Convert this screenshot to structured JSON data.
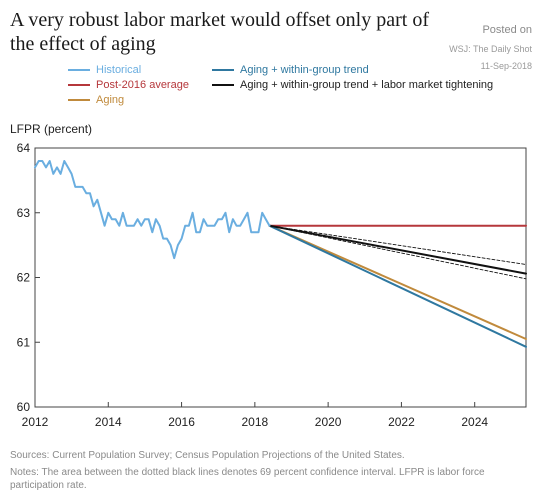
{
  "header": {
    "title": "A very robust labor market would offset only part of the effect of aging",
    "posted_on": "Posted on",
    "source": "WSJ: The Daily Shot",
    "date": "11-Sep-2018"
  },
  "footer": {
    "sources": "Sources: Current Population Survey; Census Population Projections of the United States.",
    "notes": "Notes: The area between the dotted black lines denotes 69 percent confidence interval. LFPR is labor force participation rate."
  },
  "chart_data": {
    "type": "line",
    "title": "A very robust labor market would offset only part of the effect of aging",
    "ylabel": "LFPR (percent)",
    "xlabel": "",
    "xlim": [
      2012,
      2025.4
    ],
    "ylim": [
      60,
      64
    ],
    "x_ticks": [
      2012,
      2014,
      2016,
      2018,
      2020,
      2022,
      2024
    ],
    "y_ticks": [
      60,
      61,
      62,
      63,
      64
    ],
    "grid": false,
    "legend_position": "top",
    "colors": {
      "historical": "#6aaee0",
      "post2016": "#b5373b",
      "aging": "#c08a3c",
      "aging_trend": "#2f78a0",
      "tightening": "#111111"
    },
    "series": [
      {
        "name": "Historical",
        "color": "#6aaee0",
        "x": [
          2012.0,
          2012.1,
          2012.2,
          2012.3,
          2012.4,
          2012.5,
          2012.6,
          2012.7,
          2012.8,
          2012.9,
          2013.0,
          2013.1,
          2013.2,
          2013.3,
          2013.4,
          2013.5,
          2013.6,
          2013.7,
          2013.8,
          2013.9,
          2014.0,
          2014.1,
          2014.2,
          2014.3,
          2014.4,
          2014.5,
          2014.6,
          2014.7,
          2014.8,
          2014.9,
          2015.0,
          2015.1,
          2015.2,
          2015.3,
          2015.4,
          2015.5,
          2015.6,
          2015.7,
          2015.8,
          2015.9,
          2016.0,
          2016.1,
          2016.2,
          2016.3,
          2016.4,
          2016.5,
          2016.6,
          2016.7,
          2016.8,
          2016.9,
          2017.0,
          2017.1,
          2017.2,
          2017.3,
          2017.4,
          2017.5,
          2017.6,
          2017.7,
          2017.8,
          2017.9,
          2018.0,
          2018.1,
          2018.2,
          2018.3,
          2018.4
        ],
        "values": [
          63.7,
          63.8,
          63.8,
          63.7,
          63.8,
          63.6,
          63.7,
          63.6,
          63.8,
          63.7,
          63.6,
          63.4,
          63.4,
          63.4,
          63.3,
          63.3,
          63.1,
          63.2,
          63.0,
          62.8,
          63.0,
          62.9,
          62.9,
          62.8,
          63.0,
          62.8,
          62.8,
          62.8,
          62.9,
          62.8,
          62.9,
          62.9,
          62.7,
          62.9,
          62.8,
          62.6,
          62.6,
          62.5,
          62.3,
          62.5,
          62.6,
          62.8,
          62.8,
          63.0,
          62.7,
          62.7,
          62.9,
          62.8,
          62.8,
          62.8,
          62.9,
          62.9,
          63.0,
          62.7,
          62.9,
          62.8,
          62.8,
          62.9,
          63.0,
          62.7,
          62.7,
          62.7,
          63.0,
          62.9,
          62.8
        ]
      },
      {
        "name": "Post-2016 average",
        "color": "#b5373b",
        "x": [
          2018.4,
          2025.4
        ],
        "values": [
          62.8,
          62.8
        ]
      },
      {
        "name": "Aging",
        "color": "#c08a3c",
        "x": [
          2018.4,
          2025.4
        ],
        "values": [
          62.8,
          61.05
        ]
      },
      {
        "name": "Aging + within-group trend",
        "color": "#2f78a0",
        "x": [
          2018.4,
          2025.4
        ],
        "values": [
          62.8,
          60.93
        ]
      },
      {
        "name": "Aging + within-group trend + labor market tightening",
        "color": "#111111",
        "x": [
          2018.4,
          2025.4
        ],
        "values": [
          62.8,
          62.06
        ]
      },
      {
        "name": "",
        "dashed": true,
        "color": "#111111",
        "x": [
          2018.4,
          2025.4
        ],
        "values": [
          62.8,
          62.2
        ]
      },
      {
        "name": "",
        "dashed": true,
        "color": "#111111",
        "x": [
          2018.4,
          2025.4
        ],
        "values": [
          62.8,
          61.98
        ]
      }
    ]
  }
}
